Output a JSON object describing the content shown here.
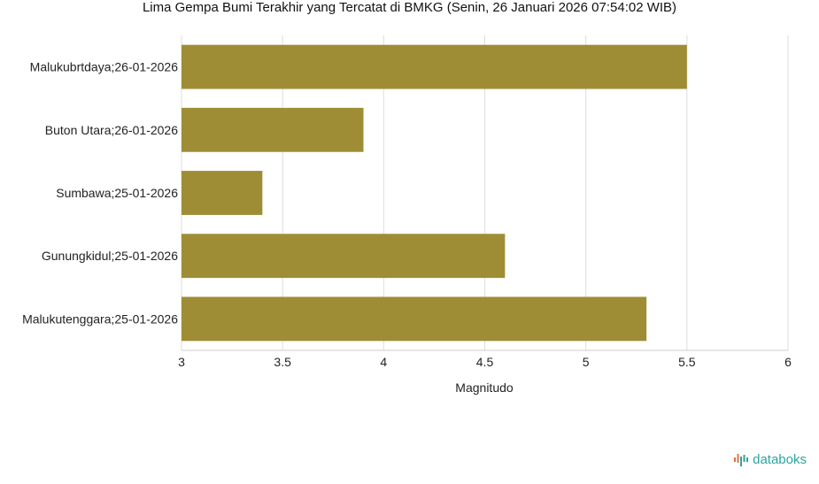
{
  "chart_data": {
    "type": "bar",
    "orientation": "horizontal",
    "title": "Lima Gempa Bumi Terakhir yang Tercatat di BMKG (Senin, 26 Januari 2026 07:54:02 WIB)",
    "xlabel": "Magnitudo",
    "ylabel": "",
    "categories": [
      "Malukubrtdaya;26-01-2026",
      "Buton Utara;26-01-2026",
      "Sumbawa;25-01-2026",
      "Gunungkidul;25-01-2026",
      "Malukutenggara;25-01-2026"
    ],
    "values": [
      5.5,
      3.9,
      3.4,
      4.6,
      5.3
    ],
    "xlim": [
      3,
      6
    ],
    "xticks": [
      "3",
      "3.5",
      "4",
      "4.5",
      "5",
      "5.5",
      "6"
    ],
    "grid": true,
    "bar_color": "#9e8d35",
    "legend": "none"
  },
  "watermark": {
    "text": "databoks",
    "color": "#2aa5a0",
    "icon": "databoks-logo-icon"
  }
}
